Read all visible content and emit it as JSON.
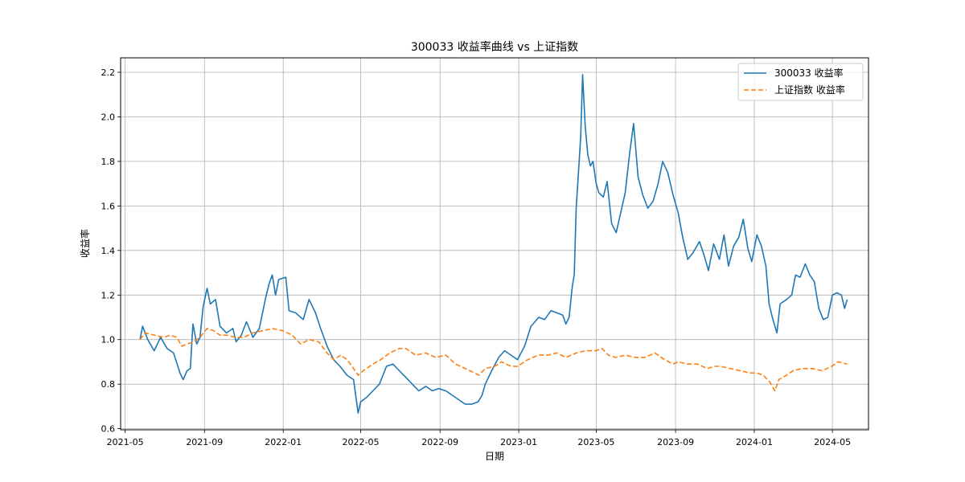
{
  "chart_data": {
    "type": "line",
    "title": "300033 收益率曲线 vs 上证指数",
    "xlabel": "日期",
    "ylabel": "收益率",
    "xlim": [
      "2021-04-24",
      "2024-06-26"
    ],
    "ylim": [
      0.595,
      2.265
    ],
    "grid": true,
    "legend_position": "upper right",
    "xticks": [
      "2021-05-01",
      "2021-09-01",
      "2022-01-01",
      "2022-05-01",
      "2022-09-01",
      "2023-01-01",
      "2023-05-01",
      "2023-09-01",
      "2024-01-01",
      "2024-05-01"
    ],
    "xtick_labels": [
      "2021-05",
      "2021-09",
      "2022-01",
      "2022-05",
      "2022-09",
      "2023-01",
      "2023-05",
      "2023-09",
      "2024-01",
      "2024-05"
    ],
    "yticks": [
      0.6,
      0.8,
      1.0,
      1.2,
      1.4,
      1.6,
      1.8,
      2.0,
      2.2
    ],
    "ytick_labels": [
      "0.6",
      "0.8",
      "1.0",
      "1.2",
      "1.4",
      "1.6",
      "1.8",
      "2.0",
      "2.2"
    ],
    "series": [
      {
        "name": "300033 收益率",
        "color": "#1f77b4",
        "style": "solid",
        "points": [
          [
            "2021-05-24",
            1.0
          ],
          [
            "2021-05-28",
            1.06
          ],
          [
            "2021-06-05",
            1.0
          ],
          [
            "2021-06-15",
            0.95
          ],
          [
            "2021-06-25",
            1.01
          ],
          [
            "2021-07-05",
            0.96
          ],
          [
            "2021-07-15",
            0.94
          ],
          [
            "2021-07-25",
            0.85
          ],
          [
            "2021-07-30",
            0.82
          ],
          [
            "2021-08-05",
            0.86
          ],
          [
            "2021-08-10",
            0.87
          ],
          [
            "2021-08-14",
            1.07
          ],
          [
            "2021-08-20",
            0.98
          ],
          [
            "2021-08-25",
            1.01
          ],
          [
            "2021-08-30",
            1.15
          ],
          [
            "2021-09-05",
            1.23
          ],
          [
            "2021-09-10",
            1.16
          ],
          [
            "2021-09-18",
            1.18
          ],
          [
            "2021-09-25",
            1.06
          ],
          [
            "2021-10-05",
            1.03
          ],
          [
            "2021-10-15",
            1.05
          ],
          [
            "2021-10-20",
            0.99
          ],
          [
            "2021-10-28",
            1.02
          ],
          [
            "2021-11-05",
            1.08
          ],
          [
            "2021-11-15",
            1.01
          ],
          [
            "2021-11-25",
            1.05
          ],
          [
            "2021-12-05",
            1.19
          ],
          [
            "2021-12-10",
            1.25
          ],
          [
            "2021-12-15",
            1.29
          ],
          [
            "2021-12-20",
            1.2
          ],
          [
            "2021-12-25",
            1.27
          ],
          [
            "2022-01-05",
            1.28
          ],
          [
            "2022-01-10",
            1.13
          ],
          [
            "2022-01-20",
            1.12
          ],
          [
            "2022-02-01",
            1.09
          ],
          [
            "2022-02-10",
            1.18
          ],
          [
            "2022-02-20",
            1.12
          ],
          [
            "2022-02-28",
            1.05
          ],
          [
            "2022-03-10",
            0.97
          ],
          [
            "2022-03-20",
            0.91
          ],
          [
            "2022-03-30",
            0.88
          ],
          [
            "2022-04-10",
            0.84
          ],
          [
            "2022-04-20",
            0.82
          ],
          [
            "2022-04-27",
            0.67
          ],
          [
            "2022-05-01",
            0.72
          ],
          [
            "2022-05-10",
            0.74
          ],
          [
            "2022-05-20",
            0.77
          ],
          [
            "2022-05-30",
            0.8
          ],
          [
            "2022-06-10",
            0.88
          ],
          [
            "2022-06-20",
            0.89
          ],
          [
            "2022-06-30",
            0.86
          ],
          [
            "2022-07-10",
            0.83
          ],
          [
            "2022-07-20",
            0.8
          ],
          [
            "2022-07-30",
            0.77
          ],
          [
            "2022-08-10",
            0.79
          ],
          [
            "2022-08-20",
            0.77
          ],
          [
            "2022-08-30",
            0.78
          ],
          [
            "2022-09-10",
            0.77
          ],
          [
            "2022-09-20",
            0.75
          ],
          [
            "2022-09-30",
            0.73
          ],
          [
            "2022-10-10",
            0.71
          ],
          [
            "2022-10-20",
            0.71
          ],
          [
            "2022-10-30",
            0.72
          ],
          [
            "2022-11-05",
            0.75
          ],
          [
            "2022-11-10",
            0.8
          ],
          [
            "2022-11-20",
            0.86
          ],
          [
            "2022-12-01",
            0.92
          ],
          [
            "2022-12-10",
            0.95
          ],
          [
            "2022-12-20",
            0.93
          ],
          [
            "2022-12-30",
            0.91
          ],
          [
            "2023-01-10",
            0.97
          ],
          [
            "2023-01-20",
            1.06
          ],
          [
            "2023-02-01",
            1.1
          ],
          [
            "2023-02-10",
            1.09
          ],
          [
            "2023-02-20",
            1.13
          ],
          [
            "2023-03-01",
            1.12
          ],
          [
            "2023-03-10",
            1.11
          ],
          [
            "2023-03-15",
            1.07
          ],
          [
            "2023-03-20",
            1.1
          ],
          [
            "2023-03-25",
            1.24
          ],
          [
            "2023-03-28",
            1.29
          ],
          [
            "2023-03-31",
            1.59
          ],
          [
            "2023-04-04",
            1.77
          ],
          [
            "2023-04-07",
            1.91
          ],
          [
            "2023-04-10",
            2.19
          ],
          [
            "2023-04-14",
            1.96
          ],
          [
            "2023-04-18",
            1.83
          ],
          [
            "2023-04-22",
            1.78
          ],
          [
            "2023-04-26",
            1.8
          ],
          [
            "2023-05-01",
            1.7
          ],
          [
            "2023-05-05",
            1.66
          ],
          [
            "2023-05-12",
            1.64
          ],
          [
            "2023-05-18",
            1.71
          ],
          [
            "2023-05-25",
            1.52
          ],
          [
            "2023-06-01",
            1.48
          ],
          [
            "2023-06-08",
            1.57
          ],
          [
            "2023-06-15",
            1.66
          ],
          [
            "2023-06-22",
            1.84
          ],
          [
            "2023-06-28",
            1.97
          ],
          [
            "2023-07-05",
            1.73
          ],
          [
            "2023-07-12",
            1.65
          ],
          [
            "2023-07-20",
            1.59
          ],
          [
            "2023-07-28",
            1.62
          ],
          [
            "2023-08-05",
            1.7
          ],
          [
            "2023-08-12",
            1.8
          ],
          [
            "2023-08-20",
            1.75
          ],
          [
            "2023-08-28",
            1.65
          ],
          [
            "2023-09-05",
            1.57
          ],
          [
            "2023-09-12",
            1.46
          ],
          [
            "2023-09-20",
            1.36
          ],
          [
            "2023-09-28",
            1.39
          ],
          [
            "2023-10-08",
            1.44
          ],
          [
            "2023-10-15",
            1.38
          ],
          [
            "2023-10-22",
            1.31
          ],
          [
            "2023-10-30",
            1.43
          ],
          [
            "2023-11-08",
            1.36
          ],
          [
            "2023-11-15",
            1.47
          ],
          [
            "2023-11-22",
            1.33
          ],
          [
            "2023-11-30",
            1.42
          ],
          [
            "2023-12-08",
            1.46
          ],
          [
            "2023-12-15",
            1.54
          ],
          [
            "2023-12-22",
            1.41
          ],
          [
            "2023-12-28",
            1.35
          ],
          [
            "2024-01-05",
            1.47
          ],
          [
            "2024-01-12",
            1.42
          ],
          [
            "2024-01-19",
            1.33
          ],
          [
            "2024-01-24",
            1.16
          ],
          [
            "2024-01-29",
            1.1
          ],
          [
            "2024-02-05",
            1.03
          ],
          [
            "2024-02-10",
            1.16
          ],
          [
            "2024-02-20",
            1.18
          ],
          [
            "2024-02-28",
            1.2
          ],
          [
            "2024-03-05",
            1.29
          ],
          [
            "2024-03-12",
            1.28
          ],
          [
            "2024-03-20",
            1.34
          ],
          [
            "2024-03-27",
            1.29
          ],
          [
            "2024-04-03",
            1.26
          ],
          [
            "2024-04-10",
            1.14
          ],
          [
            "2024-04-17",
            1.09
          ],
          [
            "2024-04-24",
            1.1
          ],
          [
            "2024-05-01",
            1.2
          ],
          [
            "2024-05-08",
            1.21
          ],
          [
            "2024-05-15",
            1.2
          ],
          [
            "2024-05-20",
            1.14
          ],
          [
            "2024-05-24",
            1.18
          ]
        ]
      },
      {
        "name": "上证指数 收益率",
        "color": "#ff7f0e",
        "style": "dashed",
        "points": [
          [
            "2021-05-24",
            1.0
          ],
          [
            "2021-06-01",
            1.03
          ],
          [
            "2021-06-15",
            1.02
          ],
          [
            "2021-06-30",
            1.01
          ],
          [
            "2021-07-10",
            1.02
          ],
          [
            "2021-07-20",
            1.01
          ],
          [
            "2021-07-28",
            0.97
          ],
          [
            "2021-08-05",
            0.98
          ],
          [
            "2021-08-15",
            0.99
          ],
          [
            "2021-08-25",
            1.01
          ],
          [
            "2021-09-05",
            1.05
          ],
          [
            "2021-09-15",
            1.04
          ],
          [
            "2021-09-25",
            1.02
          ],
          [
            "2021-10-05",
            1.02
          ],
          [
            "2021-10-20",
            1.01
          ],
          [
            "2021-11-01",
            1.01
          ],
          [
            "2021-11-15",
            1.03
          ],
          [
            "2021-12-01",
            1.04
          ],
          [
            "2021-12-15",
            1.05
          ],
          [
            "2021-12-31",
            1.04
          ],
          [
            "2022-01-15",
            1.02
          ],
          [
            "2022-01-28",
            0.98
          ],
          [
            "2022-02-10",
            1.0
          ],
          [
            "2022-02-25",
            0.99
          ],
          [
            "2022-03-10",
            0.94
          ],
          [
            "2022-03-20",
            0.91
          ],
          [
            "2022-03-31",
            0.93
          ],
          [
            "2022-04-10",
            0.91
          ],
          [
            "2022-04-20",
            0.87
          ],
          [
            "2022-04-27",
            0.84
          ],
          [
            "2022-05-05",
            0.86
          ],
          [
            "2022-05-20",
            0.89
          ],
          [
            "2022-06-01",
            0.91
          ],
          [
            "2022-06-15",
            0.94
          ],
          [
            "2022-06-30",
            0.96
          ],
          [
            "2022-07-10",
            0.96
          ],
          [
            "2022-07-25",
            0.93
          ],
          [
            "2022-08-10",
            0.94
          ],
          [
            "2022-08-25",
            0.92
          ],
          [
            "2022-09-10",
            0.93
          ],
          [
            "2022-09-25",
            0.89
          ],
          [
            "2022-10-10",
            0.87
          ],
          [
            "2022-10-25",
            0.85
          ],
          [
            "2022-10-31",
            0.84
          ],
          [
            "2022-11-10",
            0.87
          ],
          [
            "2022-11-25",
            0.88
          ],
          [
            "2022-12-05",
            0.9
          ],
          [
            "2022-12-20",
            0.88
          ],
          [
            "2022-12-30",
            0.88
          ],
          [
            "2023-01-15",
            0.91
          ],
          [
            "2023-01-31",
            0.93
          ],
          [
            "2023-02-15",
            0.93
          ],
          [
            "2023-03-01",
            0.94
          ],
          [
            "2023-03-15",
            0.92
          ],
          [
            "2023-03-31",
            0.94
          ],
          [
            "2023-04-15",
            0.95
          ],
          [
            "2023-04-30",
            0.95
          ],
          [
            "2023-05-10",
            0.96
          ],
          [
            "2023-05-20",
            0.93
          ],
          [
            "2023-05-31",
            0.92
          ],
          [
            "2023-06-15",
            0.93
          ],
          [
            "2023-06-30",
            0.92
          ],
          [
            "2023-07-15",
            0.92
          ],
          [
            "2023-07-31",
            0.94
          ],
          [
            "2023-08-15",
            0.91
          ],
          [
            "2023-08-28",
            0.89
          ],
          [
            "2023-09-05",
            0.9
          ],
          [
            "2023-09-20",
            0.89
          ],
          [
            "2023-10-05",
            0.89
          ],
          [
            "2023-10-20",
            0.87
          ],
          [
            "2023-10-31",
            0.88
          ],
          [
            "2023-11-10",
            0.88
          ],
          [
            "2023-11-25",
            0.87
          ],
          [
            "2023-12-10",
            0.86
          ],
          [
            "2023-12-25",
            0.85
          ],
          [
            "2024-01-05",
            0.85
          ],
          [
            "2024-01-15",
            0.84
          ],
          [
            "2024-01-25",
            0.81
          ],
          [
            "2024-02-02",
            0.77
          ],
          [
            "2024-02-08",
            0.82
          ],
          [
            "2024-02-20",
            0.84
          ],
          [
            "2024-03-01",
            0.86
          ],
          [
            "2024-03-15",
            0.87
          ],
          [
            "2024-03-31",
            0.87
          ],
          [
            "2024-04-15",
            0.86
          ],
          [
            "2024-04-30",
            0.88
          ],
          [
            "2024-05-10",
            0.9
          ],
          [
            "2024-05-24",
            0.89
          ]
        ]
      }
    ]
  }
}
